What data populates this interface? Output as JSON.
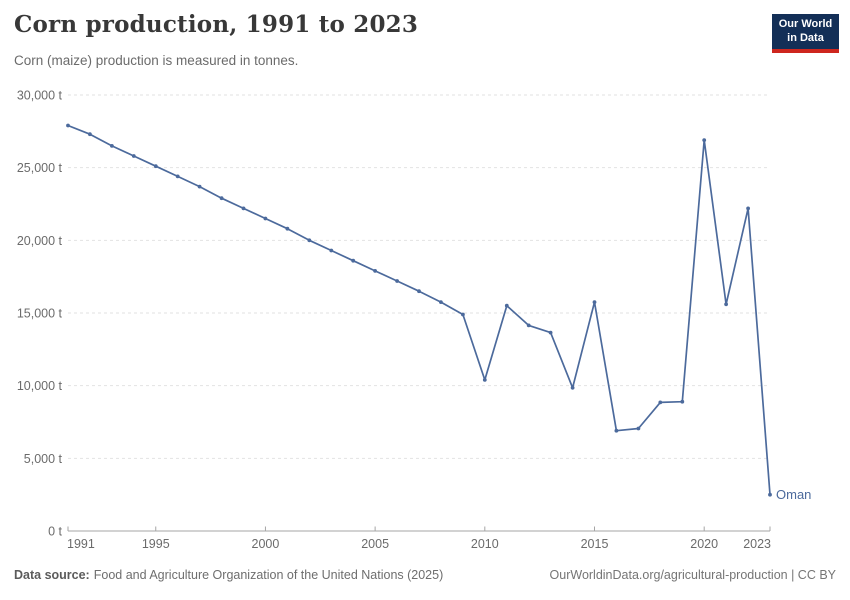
{
  "header": {
    "title": "Corn production, 1991 to 2023",
    "subtitle": "Corn (maize) production is measured in tonnes.",
    "logo": {
      "line1": "Our World",
      "line2": "in Data"
    }
  },
  "footer": {
    "source_label": "Data source:",
    "source_text": "Food and Agriculture Organization of the United Nations (2025)",
    "link_text": "OurWorldinData.org/agricultural-production | CC BY"
  },
  "colors": {
    "line": "#4C6A9C",
    "grid": "#e2e2e2",
    "axis": "#a5a5a5",
    "tick_label": "#6b6b6b",
    "title": "#383838",
    "logo_bg": "#132F57",
    "logo_red": "#CE261E"
  },
  "chart_data": {
    "type": "line",
    "title": "Corn production, 1991 to 2023",
    "subtitle": "Corn (maize) production is measured in tonnes.",
    "entity": "Oman",
    "unit": "t",
    "xlim": [
      1991,
      2023
    ],
    "ylim": [
      0,
      30000
    ],
    "grid": "horizontal-dashed",
    "legend_position": "end-of-line-label",
    "x": [
      1991,
      1992,
      1993,
      1994,
      1995,
      1996,
      1997,
      1998,
      1999,
      2000,
      2001,
      2002,
      2003,
      2004,
      2005,
      2006,
      2007,
      2008,
      2009,
      2010,
      2011,
      2012,
      2013,
      2014,
      2015,
      2016,
      2017,
      2018,
      2019,
      2020,
      2021,
      2022,
      2023
    ],
    "series": [
      {
        "name": "Oman",
        "values": [
          27900,
          27300,
          26500,
          25800,
          25100,
          24400,
          23700,
          22900,
          22200,
          21500,
          20800,
          20000,
          19300,
          18600,
          17900,
          17200,
          16500,
          15750,
          14900,
          10400,
          15500,
          14150,
          13650,
          9850,
          15750,
          6900,
          7050,
          8850,
          8900,
          26900,
          15600,
          22200,
          2500
        ]
      }
    ],
    "x_ticks": [
      1991,
      1995,
      2000,
      2005,
      2010,
      2015,
      2020,
      2023
    ],
    "y_ticks": [
      {
        "value": 0,
        "label": "0 t"
      },
      {
        "value": 5000,
        "label": "5,000 t"
      },
      {
        "value": 10000,
        "label": "10,000 t"
      },
      {
        "value": 15000,
        "label": "15,000 t"
      },
      {
        "value": 20000,
        "label": "20,000 t"
      },
      {
        "value": 25000,
        "label": "25,000 t"
      },
      {
        "value": 30000,
        "label": "30,000 t"
      }
    ],
    "end_label": "Oman"
  }
}
